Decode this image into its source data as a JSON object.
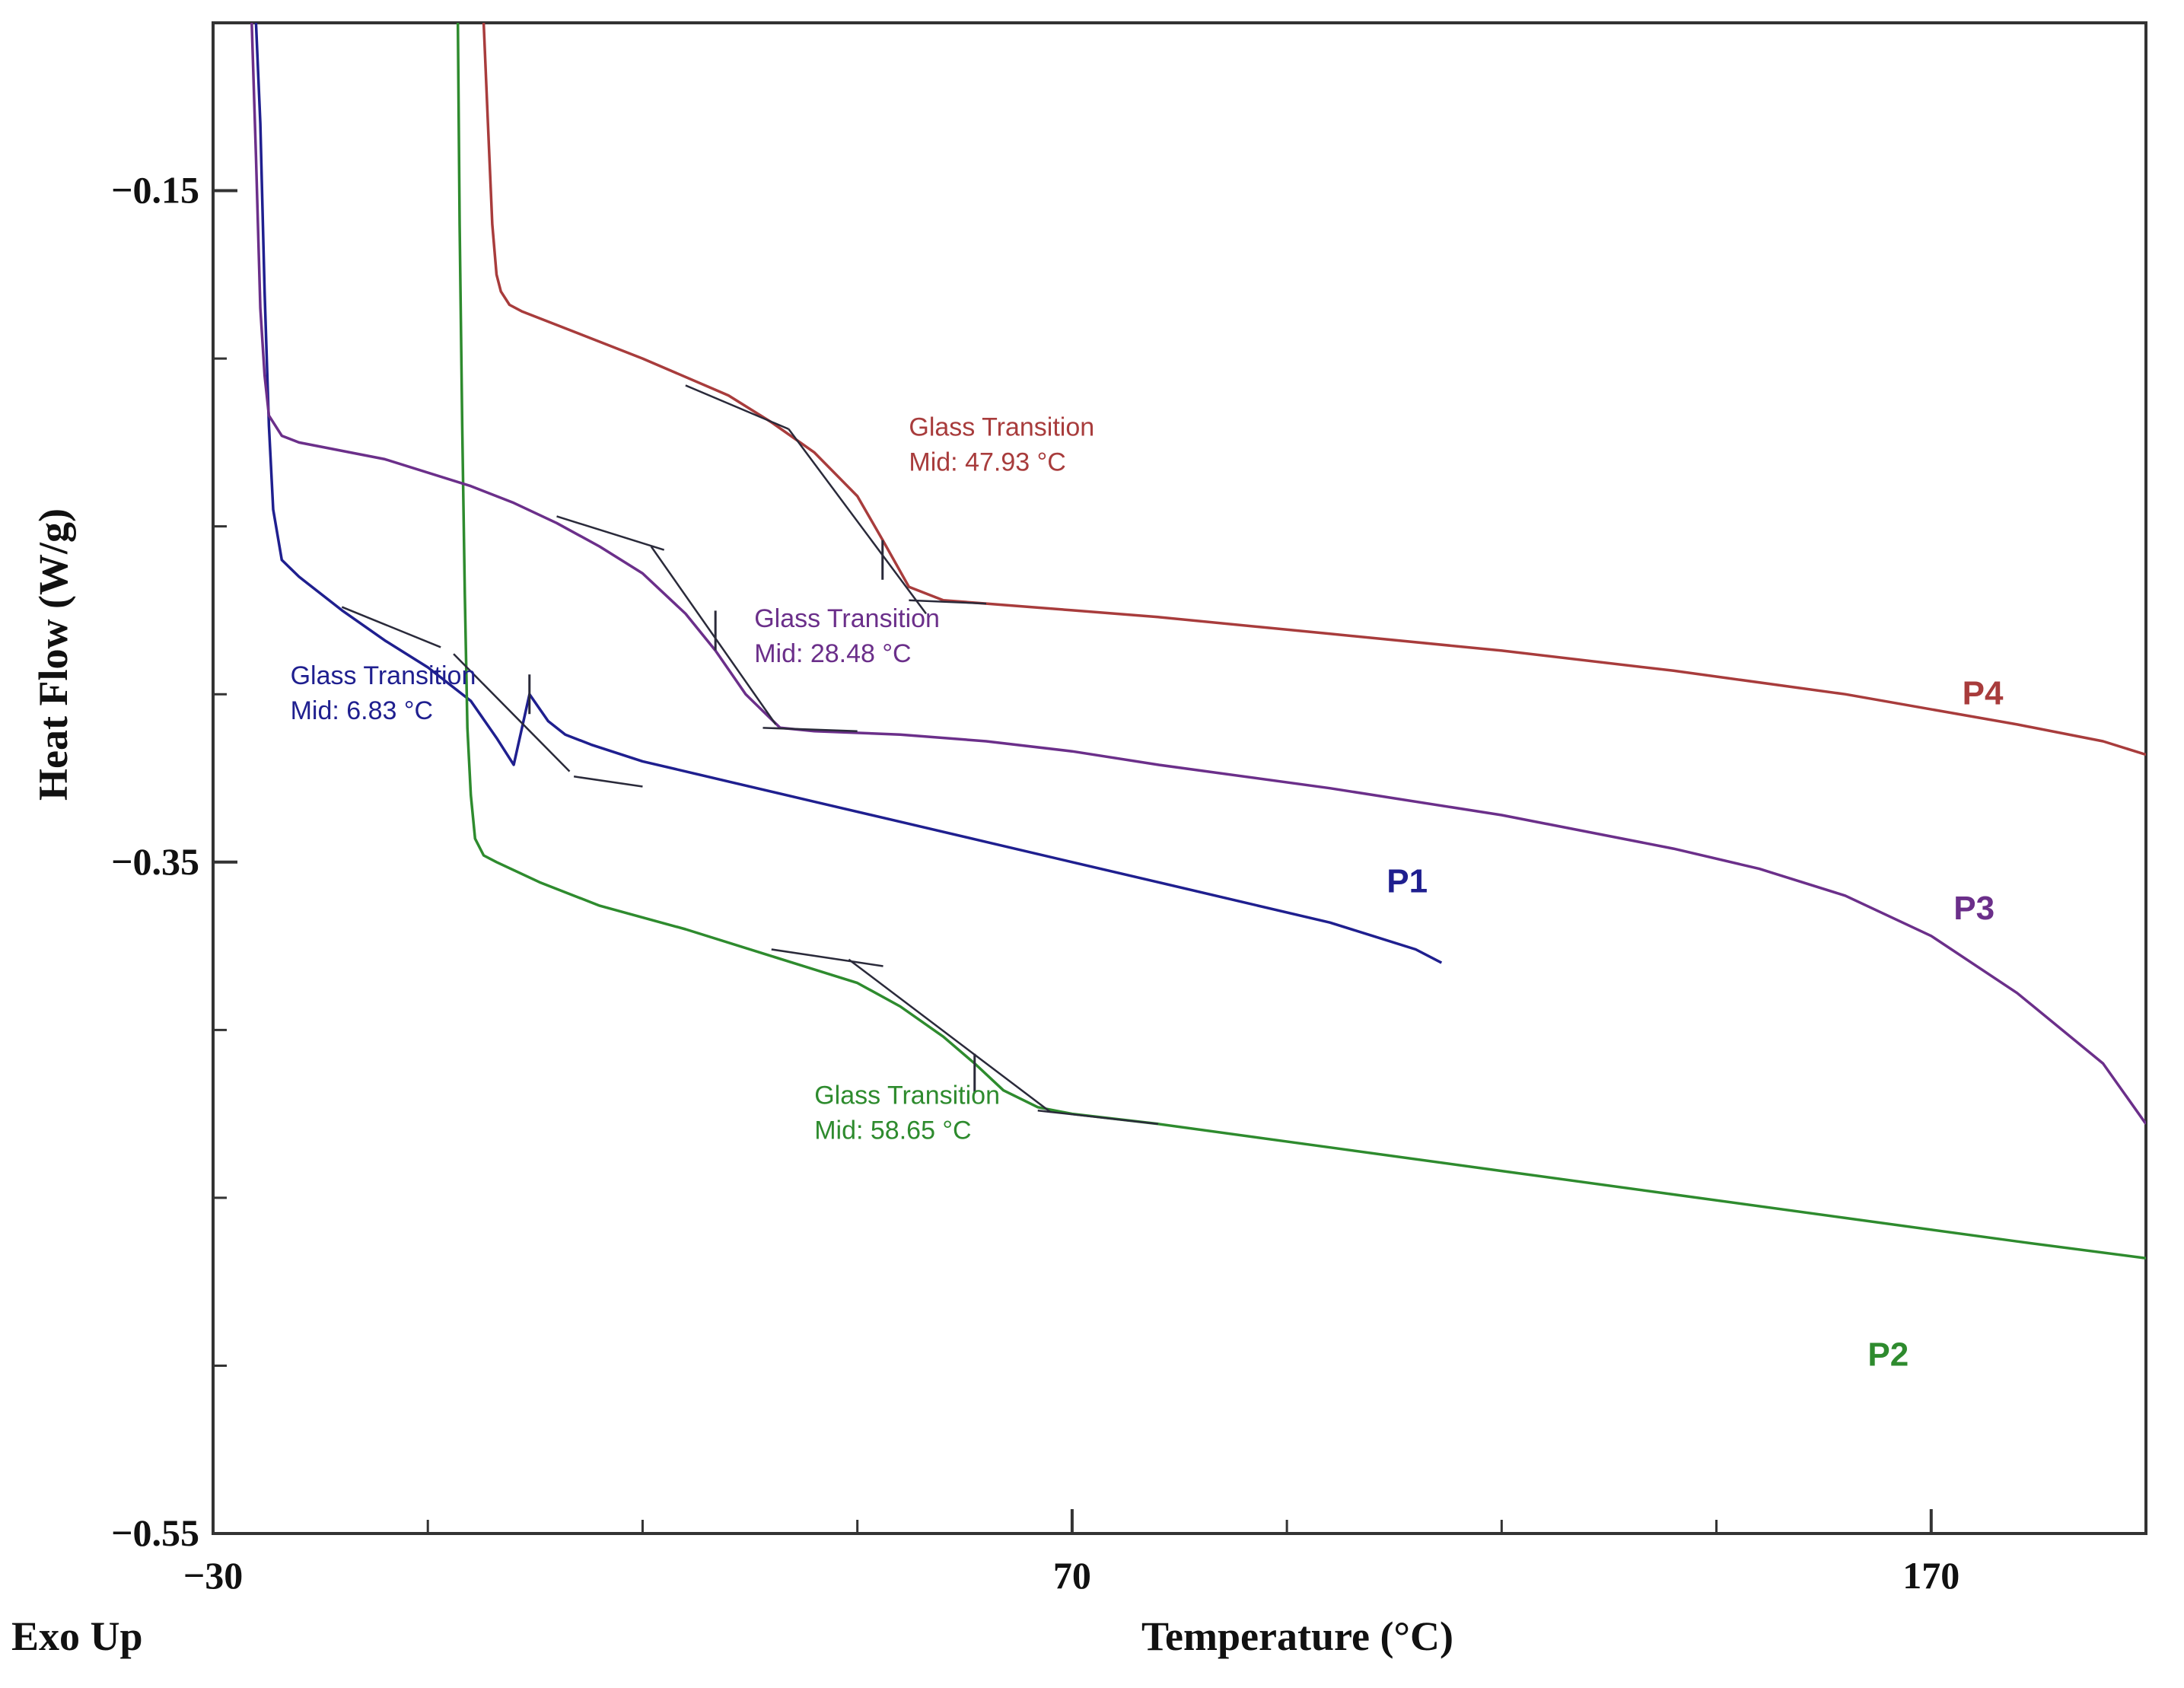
{
  "chart_data": {
    "type": "line",
    "title": "",
    "xlabel": "Temperature (°C)",
    "ylabel": "Heat Flow (W/g)",
    "corner_label": "Exo Up",
    "xlim": [
      -30,
      195
    ],
    "ylim": [
      -0.55,
      -0.1
    ],
    "x_major_ticks": [
      -30,
      70,
      170
    ],
    "x_minor_ticks": [
      -5,
      20,
      45,
      95,
      120,
      145,
      195
    ],
    "y_major_ticks": [
      -0.15,
      -0.35,
      -0.55
    ],
    "y_minor_ticks": [
      -0.1,
      -0.2,
      -0.25,
      -0.3,
      -0.4,
      -0.45,
      -0.5
    ],
    "tick_labels": {
      "x": [
        "−30",
        "70",
        "170"
      ],
      "y": [
        "−0.15",
        "−0.35",
        "−0.55"
      ]
    },
    "series": [
      {
        "name": "P1",
        "color": "#1f1f8f",
        "label_at": [
          109,
          -0.359
        ],
        "x": [
          -25,
          -24.5,
          -24,
          -23.5,
          -23,
          -22,
          -20,
          -15,
          -10,
          -5,
          0,
          3,
          5,
          6.83,
          9,
          11,
          14,
          20,
          30,
          40,
          50,
          60,
          70,
          80,
          90,
          100,
          105,
          110,
          113
        ],
        "y": [
          -0.1,
          -0.13,
          -0.18,
          -0.22,
          -0.245,
          -0.26,
          -0.265,
          -0.275,
          -0.284,
          -0.292,
          -0.302,
          -0.313,
          -0.321,
          -0.3,
          -0.308,
          -0.312,
          -0.315,
          -0.32,
          -0.326,
          -0.332,
          -0.338,
          -0.344,
          -0.35,
          -0.356,
          -0.362,
          -0.368,
          -0.372,
          -0.376,
          -0.38
        ],
        "tg": {
          "mid": 6.83,
          "y_mid": -0.3,
          "tangent_on": [
            [
              -15,
              -0.274
            ],
            [
              -3.5,
              -0.286
            ]
          ],
          "tangent_steep": [
            [
              -2,
              -0.288
            ],
            [
              11.5,
              -0.323
            ]
          ],
          "tangent_off": [
            [
              12,
              -0.3245
            ],
            [
              20,
              -0.3275
            ]
          ],
          "label_lines": [
            "Glass Transition",
            "Mid: 6.83 °C"
          ],
          "label_at": [
            -21,
            -0.297
          ]
        }
      },
      {
        "name": "P2",
        "color": "#2e8b2e",
        "label_at": [
          165,
          -0.5
        ],
        "x": [
          -1.5,
          -1.3,
          -1.0,
          -0.7,
          -0.4,
          0,
          0.5,
          1.5,
          3,
          8,
          15,
          25,
          35,
          45,
          50,
          55,
          58.65,
          62,
          66,
          70,
          80,
          100,
          120,
          140,
          160,
          180,
          195
        ],
        "y": [
          -0.1,
          -0.16,
          -0.22,
          -0.27,
          -0.31,
          -0.33,
          -0.343,
          -0.348,
          -0.35,
          -0.356,
          -0.363,
          -0.37,
          -0.378,
          -0.386,
          -0.393,
          -0.402,
          -0.41,
          -0.418,
          -0.423,
          -0.425,
          -0.428,
          -0.435,
          -0.442,
          -0.449,
          -0.456,
          -0.463,
          -0.468
        ],
        "tg": {
          "mid": 58.65,
          "y_mid": -0.413,
          "tangent_on": [
            [
              35,
              -0.376
            ],
            [
              48,
              -0.381
            ]
          ],
          "tangent_steep": [
            [
              44,
              -0.379
            ],
            [
              67.5,
              -0.4245
            ]
          ],
          "tangent_off": [
            [
              66,
              -0.424
            ],
            [
              80,
              -0.428
            ]
          ],
          "label_lines": [
            "Glass Transition",
            "Mid: 58.65 °C"
          ],
          "label_at": [
            40,
            -0.422
          ]
        }
      },
      {
        "name": "P3",
        "color": "#6b2f8a",
        "label_at": [
          175,
          -0.367
        ],
        "x": [
          -25.5,
          -25,
          -24.5,
          -24,
          -23.5,
          -22,
          -20,
          -10,
          0,
          5,
          10,
          15,
          20,
          25,
          28.48,
          32,
          36,
          40,
          50,
          60,
          70,
          80,
          100,
          120,
          140,
          150,
          160,
          170,
          180,
          190,
          195
        ],
        "y": [
          -0.1,
          -0.14,
          -0.185,
          -0.205,
          -0.217,
          -0.223,
          -0.225,
          -0.23,
          -0.238,
          -0.243,
          -0.249,
          -0.256,
          -0.264,
          -0.276,
          -0.287,
          -0.3,
          -0.31,
          -0.311,
          -0.312,
          -0.314,
          -0.317,
          -0.321,
          -0.328,
          -0.336,
          -0.346,
          -0.352,
          -0.36,
          -0.372,
          -0.389,
          -0.41,
          -0.428
        ],
        "tg": {
          "mid": 28.48,
          "y_mid": -0.281,
          "tangent_on": [
            [
              10,
              -0.247
            ],
            [
              22.5,
              -0.257
            ]
          ],
          "tangent_steep": [
            [
              21,
              -0.256
            ],
            [
              35.5,
              -0.309
            ]
          ],
          "tangent_off": [
            [
              34,
              -0.31
            ],
            [
              45,
              -0.311
            ]
          ],
          "label_lines": [
            "Glass Transition",
            "Mid: 28.48 °C"
          ],
          "label_at": [
            33,
            -0.28
          ]
        }
      },
      {
        "name": "P4",
        "color": "#a83c3c",
        "label_at": [
          176,
          -0.303
        ],
        "x": [
          1.5,
          2.0,
          2.5,
          3.0,
          3.5,
          4.5,
          6,
          10,
          20,
          30,
          35,
          40,
          45,
          47.93,
          51,
          55,
          60,
          70,
          80,
          100,
          120,
          140,
          160,
          180,
          190,
          195
        ],
        "y": [
          -0.1,
          -0.13,
          -0.16,
          -0.175,
          -0.18,
          -0.184,
          -0.186,
          -0.19,
          -0.2,
          -0.211,
          -0.219,
          -0.228,
          -0.241,
          -0.254,
          -0.268,
          -0.272,
          -0.273,
          -0.275,
          -0.277,
          -0.282,
          -0.287,
          -0.293,
          -0.3,
          -0.309,
          -0.314,
          -0.318
        ],
        "tg": {
          "mid": 47.93,
          "y_mid": -0.26,
          "tangent_on": [
            [
              25,
              -0.208
            ],
            [
              37,
              -0.221
            ]
          ],
          "tangent_steep": [
            [
              37,
              -0.221
            ],
            [
              53,
              -0.276
            ]
          ],
          "tangent_off": [
            [
              51,
              -0.272
            ],
            [
              60,
              -0.273
            ]
          ],
          "label_lines": [
            "Glass Transition",
            "Mid: 47.93 °C"
          ],
          "label_at": [
            51,
            -0.223
          ]
        }
      }
    ]
  }
}
